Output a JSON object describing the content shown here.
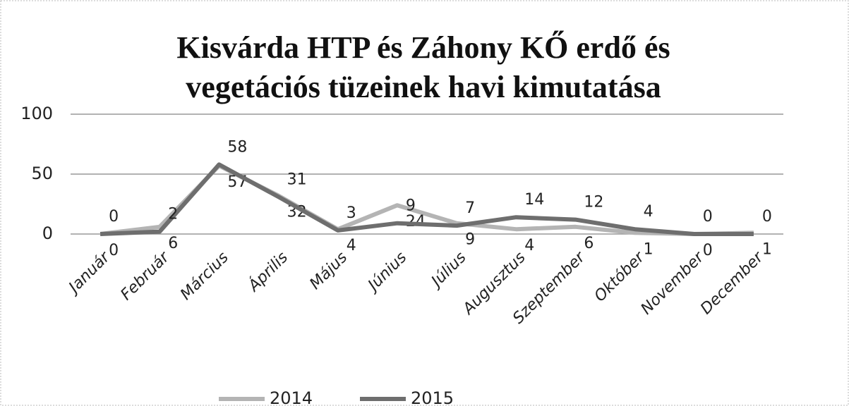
{
  "chart_data": {
    "type": "line",
    "title": "Kisvárda HTP és Záhony KŐ erdő és vegetációs tüzeinek havi kimutatása",
    "categories": [
      "Január",
      "Február",
      "Március",
      "Április",
      "Május",
      "Június",
      "Július",
      "Augusztus",
      "Szeptember",
      "Október",
      "November",
      "December"
    ],
    "series": [
      {
        "name": "2014",
        "color": "#b4b4b4",
        "values": [
          0,
          6,
          57,
          32,
          4,
          24,
          9,
          4,
          6,
          1,
          0,
          1
        ]
      },
      {
        "name": "2015",
        "color": "#6e6e6e",
        "values": [
          0,
          2,
          58,
          31,
          3,
          9,
          7,
          14,
          12,
          4,
          0,
          0
        ]
      }
    ],
    "ylim": [
      0,
      100
    ],
    "yticks": [
      0,
      50,
      100
    ],
    "grid": true,
    "legend": "bottom"
  }
}
